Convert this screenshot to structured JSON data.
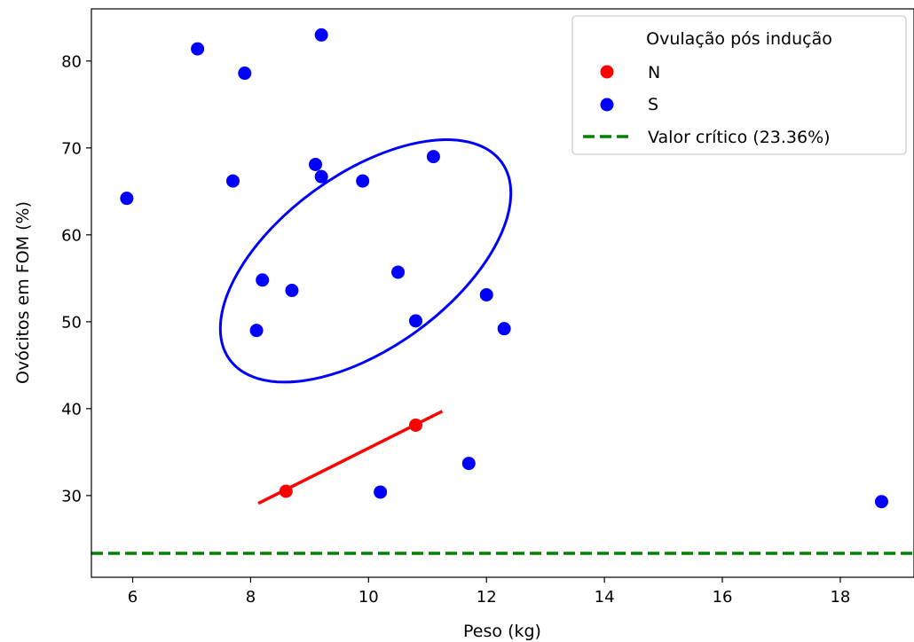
{
  "chart_data": {
    "type": "scatter",
    "title": "",
    "xlabel": "Peso (kg)",
    "ylabel": "Ovócitos em FOM (%)",
    "xlim": [
      5.3,
      19.25
    ],
    "ylim": [
      20.6,
      86.0
    ],
    "xticks": [
      6,
      8,
      10,
      12,
      14,
      16,
      18
    ],
    "yticks": [
      30,
      40,
      50,
      60,
      70,
      80
    ],
    "grid": false,
    "legend": {
      "title": "Ovulação pós indução",
      "placement": "top-right",
      "entries": [
        {
          "label": "N",
          "color": "#ff0000",
          "kind": "point"
        },
        {
          "label": "S",
          "color": "#0000ff",
          "kind": "point"
        },
        {
          "label": "Valor crítico (23.36%)",
          "color": "#008000",
          "kind": "dashed-line"
        }
      ]
    },
    "series": [
      {
        "name": "N",
        "color": "#ff0000",
        "points": [
          [
            8.6,
            30.5
          ],
          [
            10.8,
            38.1
          ]
        ]
      },
      {
        "name": "S",
        "color": "#0000ff",
        "points": [
          [
            5.9,
            64.2
          ],
          [
            7.1,
            81.4
          ],
          [
            7.9,
            78.6
          ],
          [
            9.2,
            83.0
          ],
          [
            7.7,
            66.2
          ],
          [
            9.1,
            68.1
          ],
          [
            9.2,
            66.7
          ],
          [
            9.9,
            66.2
          ],
          [
            11.1,
            69.0
          ],
          [
            10.5,
            55.7
          ],
          [
            8.2,
            54.8
          ],
          [
            8.7,
            53.6
          ],
          [
            8.1,
            49.0
          ],
          [
            10.8,
            50.1
          ],
          [
            12.0,
            53.1
          ],
          [
            12.3,
            49.2
          ],
          [
            11.7,
            33.7
          ],
          [
            10.2,
            30.4
          ],
          [
            18.7,
            29.3
          ]
        ]
      }
    ],
    "fit_line_N": {
      "color": "#ff0000",
      "x": [
        8.13,
        11.25
      ],
      "y": [
        29.1,
        39.7
      ]
    },
    "ellipse_S": {
      "color": "#0000ff",
      "center": [
        9.95,
        57.0
      ],
      "rx": 2.85,
      "ry": 10.0,
      "angle_deg": -36
    },
    "critical_value": {
      "y": 23.36,
      "color": "#008000",
      "style": "dashed"
    }
  }
}
